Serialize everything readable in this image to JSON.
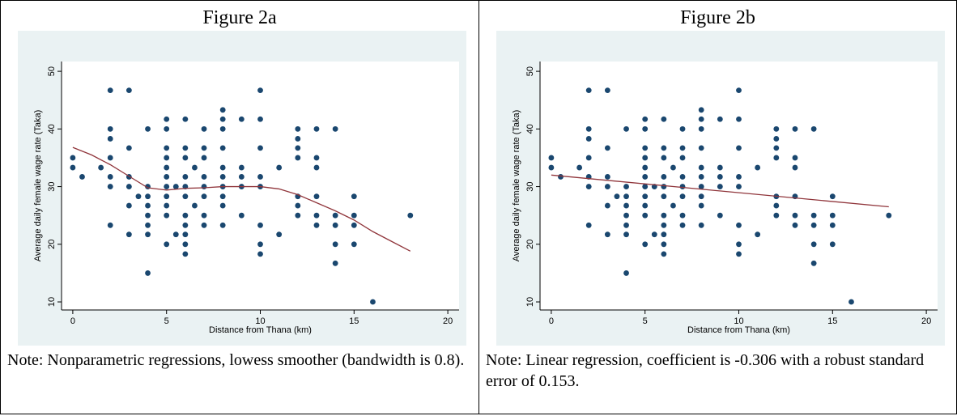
{
  "chart_data": [
    {
      "type": "scatter",
      "title": "Figure 2a",
      "xlabel": "Distance from Thana (km)",
      "ylabel": "Average daily female wage rate (Taka)",
      "note": "Note: Nonparametric regressions, lowess smoother (bandwidth is 0.8).",
      "xlim": [
        -0.6,
        20.6
      ],
      "ylim": [
        8.6,
        51.7
      ],
      "xticks": [
        0,
        5,
        10,
        15,
        20
      ],
      "yticks": [
        10,
        20,
        30,
        40,
        50
      ],
      "color": "#1a476f",
      "x": [
        0,
        0,
        0.5,
        1.5,
        2,
        2,
        2,
        2,
        2,
        2,
        2,
        3,
        3,
        3,
        3,
        3,
        3,
        3.5,
        4,
        4,
        4,
        4,
        4,
        4,
        4,
        4,
        5,
        5,
        5,
        5,
        5,
        5,
        5,
        5,
        5,
        5,
        5,
        5.5,
        5.5,
        6,
        6,
        6,
        6,
        6,
        6,
        6,
        6,
        6,
        6,
        6,
        6.5,
        6.5,
        7,
        7,
        7,
        7,
        7,
        7,
        7,
        7,
        8,
        8,
        8,
        8,
        8,
        8,
        8,
        8,
        8,
        8,
        9,
        9,
        9,
        9,
        9,
        10,
        10,
        10,
        10,
        10,
        10,
        10,
        10,
        11,
        11,
        12,
        12,
        12,
        12,
        12,
        12,
        12,
        13,
        13,
        13,
        13,
        13,
        13,
        14,
        14,
        14,
        14,
        14,
        15,
        15,
        15,
        15,
        16,
        18
      ],
      "values": [
        35,
        33.3,
        31.7,
        33.3,
        46.7,
        40,
        38.3,
        35,
        31.7,
        30,
        23.3,
        46.7,
        36.7,
        31.7,
        30,
        26.7,
        21.7,
        28.3,
        40,
        30,
        28.3,
        26.7,
        25,
        23.3,
        21.7,
        15,
        41.7,
        40,
        36.7,
        35,
        33.3,
        31.7,
        30,
        28.3,
        26.7,
        25,
        20,
        21.7,
        30,
        41.7,
        36.7,
        35,
        31.7,
        30,
        28.3,
        25,
        23.3,
        21.7,
        20,
        18.3,
        33.3,
        26.7,
        40,
        36.7,
        35,
        31.7,
        30,
        28.3,
        25,
        23.3,
        43.3,
        41.7,
        40,
        36.7,
        33.3,
        31.7,
        30,
        28.3,
        26.7,
        23.3,
        41.7,
        33.3,
        31.7,
        30,
        25,
        46.7,
        41.7,
        36.7,
        31.7,
        30,
        23.3,
        20,
        18.3,
        33.3,
        21.7,
        40,
        38.3,
        36.7,
        35,
        28.3,
        26.7,
        25,
        40,
        35,
        33.3,
        28.3,
        25,
        23.3,
        40,
        25,
        23.3,
        20,
        16.7,
        28.3,
        25,
        23.3,
        20,
        10,
        25
      ],
      "fit": {
        "type": "line",
        "color": "#90353b",
        "x": [
          0,
          1,
          2,
          3,
          4,
          5,
          6,
          7,
          8,
          9,
          10,
          11,
          12,
          13,
          14,
          15,
          16,
          17,
          18
        ],
        "values": [
          36.8,
          35.5,
          33.8,
          31.8,
          29.8,
          29.4,
          29.7,
          29.8,
          30,
          30,
          30,
          29.6,
          28.6,
          27.2,
          25.8,
          24.2,
          22.2,
          20.5,
          18.8
        ]
      }
    },
    {
      "type": "scatter",
      "title": "Figure 2b",
      "xlabel": "Distance from Thana (km)",
      "ylabel": "Average daily female wage rate (Taka)",
      "note": "Note: Linear regression, coefficient is -0.306 with a robust standard error of 0.153.",
      "xlim": [
        -0.6,
        20.6
      ],
      "ylim": [
        8.6,
        51.7
      ],
      "xticks": [
        0,
        5,
        10,
        15,
        20
      ],
      "yticks": [
        10,
        20,
        30,
        40,
        50
      ],
      "color": "#1a476f",
      "x": [
        0,
        0,
        0.5,
        1.5,
        2,
        2,
        2,
        2,
        2,
        2,
        2,
        3,
        3,
        3,
        3,
        3,
        3,
        3.5,
        4,
        4,
        4,
        4,
        4,
        4,
        4,
        4,
        5,
        5,
        5,
        5,
        5,
        5,
        5,
        5,
        5,
        5,
        5,
        5.5,
        5.5,
        6,
        6,
        6,
        6,
        6,
        6,
        6,
        6,
        6,
        6,
        6,
        6.5,
        6.5,
        7,
        7,
        7,
        7,
        7,
        7,
        7,
        7,
        8,
        8,
        8,
        8,
        8,
        8,
        8,
        8,
        8,
        8,
        9,
        9,
        9,
        9,
        9,
        10,
        10,
        10,
        10,
        10,
        10,
        10,
        10,
        11,
        11,
        12,
        12,
        12,
        12,
        12,
        12,
        12,
        13,
        13,
        13,
        13,
        13,
        13,
        14,
        14,
        14,
        14,
        14,
        15,
        15,
        15,
        15,
        16,
        18
      ],
      "values": [
        35,
        33.3,
        31.7,
        33.3,
        46.7,
        40,
        38.3,
        35,
        31.7,
        30,
        23.3,
        46.7,
        36.7,
        31.7,
        30,
        26.7,
        21.7,
        28.3,
        40,
        30,
        28.3,
        26.7,
        25,
        23.3,
        21.7,
        15,
        41.7,
        40,
        36.7,
        35,
        33.3,
        31.7,
        30,
        28.3,
        26.7,
        25,
        20,
        21.7,
        30,
        41.7,
        36.7,
        35,
        31.7,
        30,
        28.3,
        25,
        23.3,
        21.7,
        20,
        18.3,
        33.3,
        26.7,
        40,
        36.7,
        35,
        31.7,
        30,
        28.3,
        25,
        23.3,
        43.3,
        41.7,
        40,
        36.7,
        33.3,
        31.7,
        30,
        28.3,
        26.7,
        23.3,
        41.7,
        33.3,
        31.7,
        30,
        25,
        46.7,
        41.7,
        36.7,
        31.7,
        30,
        23.3,
        20,
        18.3,
        33.3,
        21.7,
        40,
        38.3,
        36.7,
        35,
        28.3,
        26.7,
        25,
        40,
        35,
        33.3,
        28.3,
        25,
        23.3,
        40,
        25,
        23.3,
        20,
        16.7,
        28.3,
        25,
        23.3,
        20,
        10,
        25
      ],
      "fit": {
        "type": "line",
        "color": "#90353b",
        "x": [
          0,
          18
        ],
        "values": [
          32.0,
          26.5
        ]
      }
    }
  ]
}
